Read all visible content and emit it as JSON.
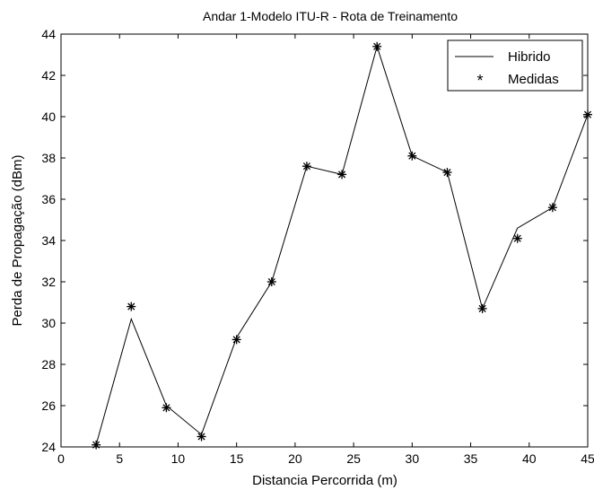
{
  "chart_data": {
    "type": "line",
    "title": "Andar 1-Modelo ITU-R - Rota de Treinamento",
    "xlabel": "Distancia Percorrida (m)",
    "ylabel": "Perda de Propagação (dBm)",
    "xlim": [
      0,
      45
    ],
    "ylim": [
      24,
      44
    ],
    "xticks": [
      0,
      5,
      10,
      15,
      20,
      25,
      30,
      35,
      40,
      45
    ],
    "yticks": [
      24,
      26,
      28,
      30,
      32,
      34,
      36,
      38,
      40,
      42,
      44
    ],
    "grid": false,
    "legend_position": "top-right",
    "series": [
      {
        "name": "Hibrido",
        "style": "line",
        "color": "#000000",
        "x": [
          3,
          6,
          9,
          12,
          15,
          18,
          21,
          24,
          27,
          30,
          33,
          36,
          39,
          42,
          45
        ],
        "y": [
          24.1,
          30.2,
          26.0,
          24.6,
          29.3,
          32.0,
          37.6,
          37.2,
          43.4,
          38.1,
          37.3,
          30.7,
          34.6,
          35.6,
          40.1
        ]
      },
      {
        "name": "Medidas",
        "style": "markers",
        "marker": "*",
        "color": "#000000",
        "x": [
          3,
          6,
          9,
          12,
          15,
          18,
          21,
          24,
          27,
          30,
          33,
          36,
          39,
          42,
          45
        ],
        "y": [
          24.1,
          30.8,
          25.9,
          24.5,
          29.2,
          32.0,
          37.6,
          37.2,
          43.4,
          38.1,
          37.3,
          30.7,
          34.1,
          35.6,
          40.1
        ]
      }
    ]
  }
}
